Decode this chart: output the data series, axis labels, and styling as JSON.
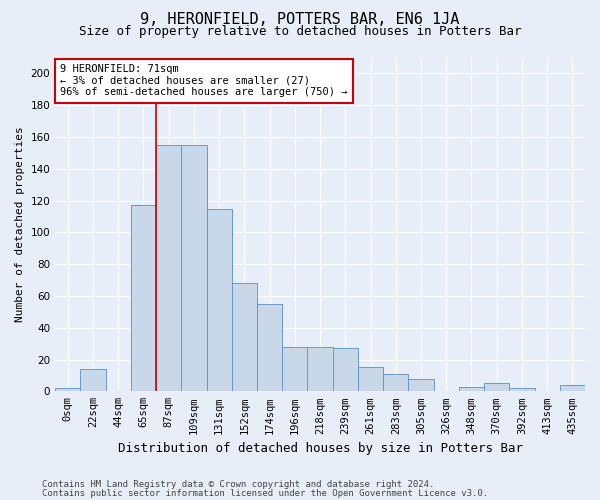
{
  "title": "9, HERONFIELD, POTTERS BAR, EN6 1JA",
  "subtitle": "Size of property relative to detached houses in Potters Bar",
  "xlabel": "Distribution of detached houses by size in Potters Bar",
  "ylabel": "Number of detached properties",
  "bar_labels": [
    "0sqm",
    "22sqm",
    "44sqm",
    "65sqm",
    "87sqm",
    "109sqm",
    "131sqm",
    "152sqm",
    "174sqm",
    "196sqm",
    "218sqm",
    "239sqm",
    "261sqm",
    "283sqm",
    "305sqm",
    "326sqm",
    "348sqm",
    "370sqm",
    "392sqm",
    "413sqm",
    "435sqm"
  ],
  "bar_heights": [
    2,
    14,
    0,
    117,
    155,
    155,
    115,
    68,
    55,
    28,
    28,
    27,
    15,
    11,
    8,
    0,
    3,
    5,
    2,
    0,
    4
  ],
  "bar_color": "#c8d8e8",
  "bar_edge_color": "#6699cc",
  "ylim": [
    0,
    210
  ],
  "yticks": [
    0,
    20,
    40,
    60,
    80,
    100,
    120,
    140,
    160,
    180,
    200
  ],
  "vline_x": 3.5,
  "vline_color": "#cc0000",
  "annotation_text": "9 HERONFIELD: 71sqm\n← 3% of detached houses are smaller (27)\n96% of semi-detached houses are larger (750) →",
  "annotation_box_color": "#ffffff",
  "annotation_box_edge": "#cc0000",
  "footer_line1": "Contains HM Land Registry data © Crown copyright and database right 2024.",
  "footer_line2": "Contains public sector information licensed under the Open Government Licence v3.0.",
  "background_color": "#e8eef8",
  "grid_color": "#ffffff",
  "title_fontsize": 11,
  "subtitle_fontsize": 9,
  "ylabel_fontsize": 8,
  "xlabel_fontsize": 9,
  "tick_fontsize": 7.5,
  "annotation_fontsize": 7.5,
  "footer_fontsize": 6.5
}
